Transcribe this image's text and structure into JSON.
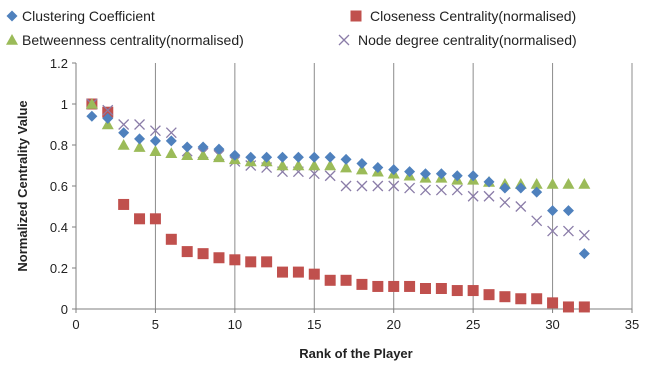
{
  "chart_data": {
    "type": "scatter",
    "xlabel": "Rank of the Player",
    "ylabel": "Normalized Centrality Value",
    "xlim": [
      0,
      35
    ],
    "ylim": [
      0,
      1.2
    ],
    "xticks": [
      0,
      5,
      10,
      15,
      20,
      25,
      30,
      35
    ],
    "yticks": [
      0,
      0.2,
      0.4,
      0.6,
      0.8,
      1,
      1.2
    ],
    "grid": "vertical",
    "legend_position": "top",
    "series": [
      {
        "name": "Clustering Coefficient",
        "marker": "diamond",
        "color": "#4F81BD",
        "x": [
          1,
          2,
          3,
          4,
          5,
          6,
          7,
          8,
          9,
          10,
          11,
          12,
          13,
          14,
          15,
          16,
          17,
          18,
          19,
          20,
          21,
          22,
          23,
          24,
          25,
          26,
          27,
          28,
          29,
          30,
          31,
          32
        ],
        "y": [
          0.94,
          0.93,
          0.86,
          0.83,
          0.82,
          0.82,
          0.79,
          0.79,
          0.78,
          0.75,
          0.74,
          0.74,
          0.74,
          0.74,
          0.74,
          0.74,
          0.73,
          0.71,
          0.69,
          0.68,
          0.67,
          0.66,
          0.66,
          0.65,
          0.65,
          0.62,
          0.59,
          0.59,
          0.57,
          0.48,
          0.48,
          0.27
        ]
      },
      {
        "name": "Closeness  Centrality(normalised)",
        "marker": "square",
        "color": "#C0504D",
        "x": [
          1,
          2,
          3,
          4,
          5,
          6,
          7,
          8,
          9,
          10,
          11,
          12,
          13,
          14,
          15,
          16,
          17,
          18,
          19,
          20,
          21,
          22,
          23,
          24,
          25,
          26,
          27,
          28,
          29,
          30,
          31,
          32
        ],
        "y": [
          1.0,
          0.96,
          0.51,
          0.44,
          0.44,
          0.34,
          0.28,
          0.27,
          0.25,
          0.24,
          0.23,
          0.23,
          0.18,
          0.18,
          0.17,
          0.14,
          0.14,
          0.12,
          0.11,
          0.11,
          0.11,
          0.1,
          0.1,
          0.09,
          0.09,
          0.07,
          0.06,
          0.05,
          0.05,
          0.03,
          0.01,
          0.01
        ]
      },
      {
        "name": "Betweenness centrality(normalised)",
        "marker": "triangle",
        "color": "#9BBB59",
        "x": [
          1,
          2,
          3,
          4,
          5,
          6,
          7,
          8,
          9,
          10,
          11,
          12,
          13,
          14,
          15,
          16,
          17,
          18,
          19,
          20,
          21,
          22,
          23,
          24,
          25,
          26,
          27,
          28,
          29,
          30,
          31,
          32
        ],
        "y": [
          1.0,
          0.9,
          0.8,
          0.79,
          0.77,
          0.76,
          0.75,
          0.75,
          0.74,
          0.73,
          0.72,
          0.72,
          0.7,
          0.7,
          0.7,
          0.7,
          0.69,
          0.68,
          0.67,
          0.66,
          0.65,
          0.64,
          0.64,
          0.63,
          0.63,
          0.62,
          0.61,
          0.61,
          0.61,
          0.61,
          0.61,
          0.61
        ]
      },
      {
        "name": "Node degree centrality(normalised)",
        "marker": "x",
        "color": "#8A7CA8",
        "x": [
          1,
          2,
          3,
          4,
          5,
          6,
          7,
          8,
          9,
          10,
          11,
          12,
          13,
          14,
          15,
          16,
          17,
          18,
          19,
          20,
          21,
          22,
          23,
          24,
          25,
          26,
          27,
          28,
          29,
          30,
          31,
          32
        ],
        "y": [
          1.0,
          0.97,
          0.9,
          0.9,
          0.87,
          0.86,
          0.77,
          0.76,
          0.75,
          0.72,
          0.7,
          0.69,
          0.67,
          0.67,
          0.66,
          0.65,
          0.6,
          0.6,
          0.6,
          0.6,
          0.59,
          0.58,
          0.58,
          0.58,
          0.55,
          0.55,
          0.52,
          0.5,
          0.43,
          0.38,
          0.38,
          0.36
        ]
      }
    ]
  }
}
